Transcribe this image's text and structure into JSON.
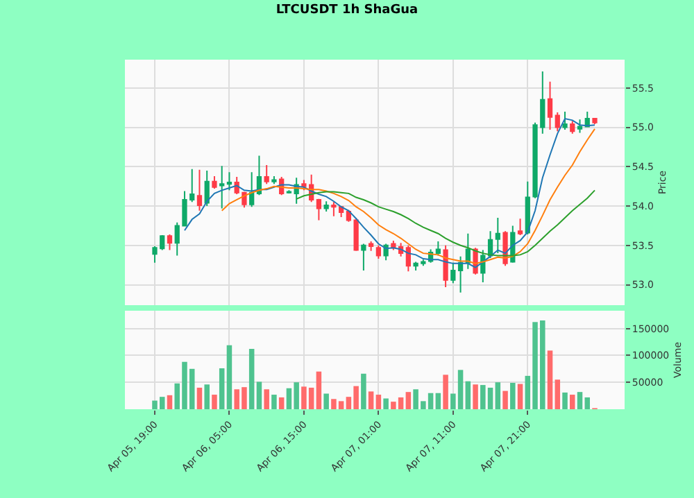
{
  "chart_data": [
    {
      "type": "candlestick",
      "title": "LTCUSDT 1h ShaGua",
      "ylabel": "Price",
      "categories": [
        null,
        null,
        null,
        null,
        null,
        null,
        null,
        null,
        null,
        null,
        null,
        null,
        null,
        null,
        null,
        null,
        null,
        null,
        null,
        null,
        null,
        null,
        null,
        null,
        null,
        null,
        null,
        null,
        null,
        null,
        null,
        null,
        null,
        null,
        null,
        null,
        null,
        null,
        null,
        null,
        null,
        null,
        null,
        null,
        null,
        null,
        null,
        null,
        null,
        null,
        null,
        null,
        null,
        null,
        null,
        null,
        null,
        null,
        null,
        null
      ],
      "ohlc": [
        [
          53.39,
          53.49,
          53.28,
          53.47
        ],
        [
          53.46,
          53.63,
          53.44,
          53.62
        ],
        [
          53.62,
          53.64,
          53.44,
          53.53
        ],
        [
          53.53,
          53.79,
          53.37,
          53.75
        ],
        [
          53.75,
          54.19,
          53.74,
          54.08
        ],
        [
          54.08,
          54.47,
          54.05,
          54.15
        ],
        [
          54.13,
          54.46,
          53.94,
          54.01
        ],
        [
          54.04,
          54.45,
          54.0,
          54.31
        ],
        [
          54.31,
          54.38,
          54.22,
          54.24
        ],
        [
          54.26,
          54.51,
          53.97,
          54.28
        ],
        [
          54.28,
          54.43,
          54.2,
          54.3
        ],
        [
          54.3,
          54.37,
          54.15,
          54.17
        ],
        [
          54.17,
          54.18,
          53.98,
          54.02
        ],
        [
          54.02,
          54.43,
          53.99,
          54.17
        ],
        [
          54.16,
          54.64,
          54.14,
          54.37
        ],
        [
          54.37,
          54.52,
          54.28,
          54.31
        ],
        [
          54.31,
          54.38,
          54.28,
          54.33
        ],
        [
          54.34,
          54.37,
          54.14,
          54.16
        ],
        [
          54.17,
          54.2,
          54.16,
          54.18
        ],
        [
          54.16,
          54.36,
          54.03,
          54.27
        ],
        [
          54.28,
          54.33,
          54.2,
          54.25
        ],
        [
          54.27,
          54.4,
          54.05,
          54.08
        ],
        [
          54.08,
          54.09,
          53.82,
          53.97
        ],
        [
          53.97,
          54.06,
          53.93,
          54.01
        ],
        [
          54.01,
          54.05,
          53.87,
          53.99
        ],
        [
          53.99,
          54.0,
          53.86,
          53.92
        ],
        [
          53.93,
          53.95,
          53.8,
          53.82
        ],
        [
          53.82,
          53.85,
          53.43,
          53.44
        ],
        [
          53.44,
          53.52,
          53.18,
          53.5
        ],
        [
          53.52,
          53.55,
          53.43,
          53.49
        ],
        [
          53.47,
          53.5,
          53.33,
          53.37
        ],
        [
          53.37,
          53.52,
          53.31,
          53.5
        ],
        [
          53.52,
          53.56,
          53.44,
          53.47
        ],
        [
          53.48,
          53.53,
          53.36,
          53.4
        ],
        [
          53.47,
          53.5,
          53.17,
          53.24
        ],
        [
          53.24,
          53.29,
          53.18,
          53.27
        ],
        [
          53.27,
          53.32,
          53.24,
          53.29
        ],
        [
          53.3,
          53.45,
          53.28,
          53.41
        ],
        [
          53.4,
          53.55,
          53.37,
          53.45
        ],
        [
          53.44,
          53.5,
          52.97,
          53.06
        ],
        [
          53.06,
          53.28,
          53.02,
          53.18
        ],
        [
          53.18,
          53.36,
          52.9,
          53.28
        ],
        [
          53.28,
          53.65,
          53.2,
          53.45
        ],
        [
          53.45,
          53.47,
          53.13,
          53.15
        ],
        [
          53.15,
          53.44,
          53.03,
          53.37
        ],
        [
          53.37,
          53.68,
          53.34,
          53.57
        ],
        [
          53.58,
          53.85,
          53.4,
          53.65
        ],
        [
          53.66,
          53.68,
          53.24,
          53.27
        ],
        [
          53.29,
          53.75,
          53.28,
          53.66
        ],
        [
          53.68,
          53.84,
          53.63,
          53.65
        ],
        [
          53.66,
          54.31,
          53.64,
          54.11
        ],
        [
          54.12,
          55.06,
          54.1,
          55.03
        ],
        [
          55.0,
          55.71,
          54.92,
          55.35
        ],
        [
          55.36,
          55.58,
          54.97,
          55.13
        ],
        [
          55.15,
          55.19,
          54.95,
          55.0
        ],
        [
          55.0,
          55.2,
          54.97,
          55.04
        ],
        [
          55.04,
          55.08,
          54.92,
          54.95
        ],
        [
          54.98,
          55.1,
          54.93,
          55.01
        ],
        [
          55.01,
          55.2,
          55.0,
          55.11
        ],
        [
          55.11,
          55.12,
          55.04,
          55.06
        ]
      ],
      "colors": [
        "#0fa968",
        "#0fa968",
        "#fe3b47",
        "#0fa968",
        "#0fa968",
        "#0fa968",
        "#fe3b47",
        "#0fa968",
        "#fe3b47",
        "#0fa968",
        "#0fa968",
        "#fe3b47",
        "#fe3b47",
        "#0fa968",
        "#0fa968",
        "#fe3b47",
        "#0fa968",
        "#fe3b47",
        "#0fa968",
        "#0fa968",
        "#fe3b47",
        "#fe3b47",
        "#fe3b47",
        "#0fa968",
        "#fe3b47",
        "#fe3b47",
        "#fe3b47",
        "#fe3b47",
        "#0fa968",
        "#fe3b47",
        "#fe3b47",
        "#0fa968",
        "#fe3b47",
        "#fe3b47",
        "#fe3b47",
        "#0fa968",
        "#0fa968",
        "#0fa968",
        "#0fa968",
        "#fe3b47",
        "#0fa968",
        "#0fa968",
        "#0fa968",
        "#fe3b47",
        "#0fa968",
        "#0fa968",
        "#0fa968",
        "#fe3b47",
        "#0fa968",
        "#fe3b47",
        "#0fa968",
        "#0fa968",
        "#0fa968",
        "#fe3b47",
        "#fe3b47",
        "#0fa968",
        "#fe3b47",
        "#0fa968",
        "#0fa968",
        "#fe3b47"
      ],
      "series": [
        {
          "type": "line",
          "color": "#1f77b4",
          "values": [
            null,
            null,
            null,
            null,
            53.69,
            53.83,
            53.9,
            54.06,
            54.16,
            54.2,
            54.23,
            54.26,
            54.2,
            54.19,
            54.21,
            54.21,
            54.24,
            54.27,
            54.27,
            54.25,
            54.24,
            54.19,
            54.15,
            54.12,
            54.06,
            53.99,
            53.94,
            53.84,
            53.73,
            53.63,
            53.52,
            53.46,
            53.47,
            53.45,
            53.4,
            53.38,
            53.33,
            53.32,
            53.32,
            53.29,
            53.27,
            53.27,
            53.27,
            53.22,
            53.29,
            53.36,
            53.44,
            53.4,
            53.5,
            53.56,
            53.67,
            53.94,
            54.36,
            54.65,
            54.92,
            55.11,
            55.09,
            55.03,
            55.02,
            55.03
          ]
        },
        {
          "type": "line",
          "color": "#ff7f0e",
          "values": [
            null,
            null,
            null,
            null,
            null,
            null,
            null,
            null,
            null,
            53.94,
            54.03,
            54.08,
            54.13,
            54.17,
            54.2,
            54.22,
            54.25,
            54.24,
            54.23,
            54.23,
            54.22,
            54.21,
            54.21,
            54.19,
            54.16,
            54.12,
            54.07,
            53.99,
            53.93,
            53.85,
            53.76,
            53.7,
            53.65,
            53.59,
            53.52,
            53.45,
            53.4,
            53.39,
            53.38,
            53.34,
            53.32,
            53.3,
            53.3,
            53.27,
            53.29,
            53.32,
            53.35,
            53.34,
            53.36,
            53.42,
            53.52,
            53.69,
            53.88,
            54.08,
            54.24,
            54.39,
            54.52,
            54.69,
            54.84,
            54.98
          ]
        },
        {
          "type": "line",
          "color": "#2ca02c",
          "values": [
            null,
            null,
            null,
            null,
            null,
            null,
            null,
            null,
            null,
            null,
            null,
            null,
            null,
            null,
            null,
            null,
            null,
            null,
            null,
            54.09,
            54.13,
            54.15,
            54.17,
            54.18,
            54.18,
            54.17,
            54.16,
            54.11,
            54.08,
            54.04,
            53.99,
            53.96,
            53.93,
            53.89,
            53.84,
            53.78,
            53.73,
            53.69,
            53.65,
            53.59,
            53.54,
            53.5,
            53.47,
            53.43,
            53.4,
            53.38,
            53.37,
            53.37,
            53.37,
            53.38,
            53.42,
            53.5,
            53.59,
            53.68,
            53.76,
            53.85,
            53.94,
            54.02,
            54.1,
            54.2
          ]
        }
      ],
      "ylim": [
        52.74,
        55.86
      ],
      "yticks": [
        {
          "value": 53,
          "label": "53.0"
        },
        53.5,
        {
          "value": 54,
          "label": "54.0"
        },
        54.5,
        {
          "value": 55,
          "label": "55.0"
        },
        55.5
      ],
      "grid": true,
      "tick_labels": "y"
    },
    {
      "type": "bar",
      "ylabel": "Volume",
      "categories": [
        "Apr 05, 19:00",
        null,
        null,
        null,
        null,
        null,
        null,
        null,
        null,
        null,
        "Apr 06, 05:00",
        null,
        null,
        null,
        null,
        null,
        null,
        null,
        null,
        null,
        "Apr 06, 15:00",
        null,
        null,
        null,
        null,
        null,
        null,
        null,
        null,
        null,
        "Apr 07, 01:00",
        null,
        null,
        null,
        null,
        null,
        null,
        null,
        null,
        null,
        "Apr 07, 11:00",
        null,
        null,
        null,
        null,
        null,
        null,
        null,
        null,
        null,
        "Apr 07, 21:00",
        null,
        null,
        null,
        null,
        null,
        null,
        null,
        null,
        null
      ],
      "values": [
        16000,
        23000,
        26000,
        48000,
        88000,
        75000,
        40000,
        46000,
        27000,
        76000,
        119000,
        37000,
        41000,
        112000,
        51000,
        37000,
        27000,
        22000,
        39000,
        50000,
        42000,
        40000,
        70000,
        29000,
        19000,
        15000,
        23000,
        43000,
        66000,
        33000,
        27000,
        20000,
        14000,
        22000,
        32000,
        37000,
        15000,
        30000,
        30000,
        64000,
        29000,
        73000,
        52000,
        46000,
        45000,
        40000,
        50000,
        34000,
        49000,
        47000,
        62000,
        162000,
        165000,
        109000,
        55000,
        31000,
        27000,
        32000,
        22000,
        2000
      ],
      "colors": [
        "#4fc38f",
        "#4fc38f",
        "#ff6b6b",
        "#4fc38f",
        "#4fc38f",
        "#4fc38f",
        "#ff6b6b",
        "#4fc38f",
        "#ff6b6b",
        "#4fc38f",
        "#4fc38f",
        "#ff6b6b",
        "#ff6b6b",
        "#4fc38f",
        "#4fc38f",
        "#ff6b6b",
        "#4fc38f",
        "#ff6b6b",
        "#4fc38f",
        "#4fc38f",
        "#ff6b6b",
        "#ff6b6b",
        "#ff6b6b",
        "#4fc38f",
        "#ff6b6b",
        "#ff6b6b",
        "#ff6b6b",
        "#ff6b6b",
        "#4fc38f",
        "#ff6b6b",
        "#ff6b6b",
        "#4fc38f",
        "#ff6b6b",
        "#ff6b6b",
        "#ff6b6b",
        "#4fc38f",
        "#4fc38f",
        "#4fc38f",
        "#4fc38f",
        "#ff6b6b",
        "#4fc38f",
        "#4fc38f",
        "#4fc38f",
        "#ff6b6b",
        "#4fc38f",
        "#4fc38f",
        "#4fc38f",
        "#ff6b6b",
        "#4fc38f",
        "#ff6b6b",
        "#4fc38f",
        "#4fc38f",
        "#4fc38f",
        "#ff6b6b",
        "#ff6b6b",
        "#4fc38f",
        "#ff6b6b",
        "#4fc38f",
        "#4fc38f",
        "#ff6b6b"
      ],
      "ylim": [
        0,
        183000
      ],
      "yticks": [
        50000,
        100000,
        150000
      ],
      "grid": true
    }
  ]
}
